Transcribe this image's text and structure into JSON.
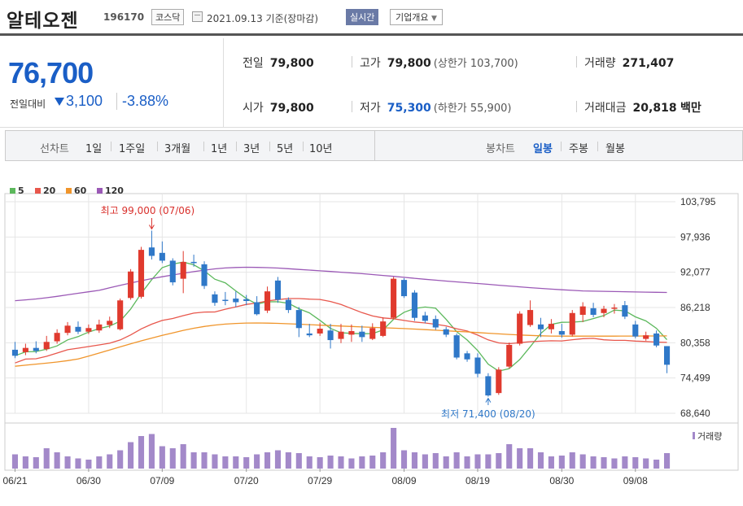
{
  "header": {
    "name": "알테오젠",
    "code": "196170",
    "market": "코스닥",
    "date": "2021.09.13",
    "date_suffix": "기준(장마감)",
    "realtime": "실시간",
    "company_info": "기업개요"
  },
  "price": {
    "current": "76,700",
    "change_label": "전일대비",
    "change": "3,100",
    "change_pct": "-3.88%",
    "prev_label": "전일",
    "prev": "79,800",
    "open_label": "시가",
    "open": "79,800",
    "high_label": "고가",
    "high": "79,800",
    "upper_limit": "(상한가 103,700)",
    "low_label": "저가",
    "low": "75,300",
    "lower_limit": "(하한가 55,900)",
    "volume_label": "거래량",
    "volume": "271,407",
    "amount_label": "거래대금",
    "amount": "20,818",
    "amount_unit": "백만"
  },
  "tabs": {
    "line_chart": "선차트",
    "periods": [
      "1일",
      "1주일",
      "3개월",
      "1년",
      "3년",
      "5년",
      "10년"
    ],
    "candle_chart": "봉차트",
    "candle_periods": [
      "일봉",
      "주봉",
      "월봉"
    ],
    "selected_candle": "일봉"
  },
  "colors": {
    "up": "#e03a2e",
    "down": "#2f78c8",
    "ma5": "#5cb85c",
    "ma20": "#e8574c",
    "ma60": "#f0952b",
    "ma120": "#9b59b6",
    "volume": "#a389c9"
  },
  "chart_data": {
    "type": "candlestick",
    "y_ticks": [
      "103,795",
      "97,936",
      "92,077",
      "86,218",
      "80,358",
      "74,499",
      "68,640"
    ],
    "ylim": [
      68640,
      103795
    ],
    "x_ticks": [
      "06/21",
      "06/30",
      "07/09",
      "07/20",
      "07/29",
      "08/09",
      "08/19",
      "08/30",
      "09/08"
    ],
    "legend": [
      "5",
      "20",
      "60",
      "120"
    ],
    "annotations": {
      "high": "최고 99,000 (07/06)",
      "low": "최저 71,400 (08/20)"
    },
    "volume_label": "거래량",
    "candles": [
      {
        "o": 79200,
        "c": 78200,
        "h": 80500,
        "l": 77800,
        "v": 0.35
      },
      {
        "o": 78800,
        "c": 79500,
        "h": 80200,
        "l": 78300,
        "v": 0.3
      },
      {
        "o": 79500,
        "c": 79000,
        "h": 80600,
        "l": 78600,
        "v": 0.28
      },
      {
        "o": 79300,
        "c": 80500,
        "h": 81500,
        "l": 79000,
        "v": 0.5
      },
      {
        "o": 80600,
        "c": 82000,
        "h": 82600,
        "l": 80200,
        "v": 0.4
      },
      {
        "o": 82000,
        "c": 83200,
        "h": 83800,
        "l": 81600,
        "v": 0.3
      },
      {
        "o": 83000,
        "c": 82200,
        "h": 83900,
        "l": 81800,
        "v": 0.25
      },
      {
        "o": 82200,
        "c": 82800,
        "h": 83400,
        "l": 81800,
        "v": 0.22
      },
      {
        "o": 82400,
        "c": 83400,
        "h": 84200,
        "l": 82000,
        "v": 0.3
      },
      {
        "o": 83300,
        "c": 84000,
        "h": 84700,
        "l": 82800,
        "v": 0.35
      },
      {
        "o": 82600,
        "c": 87400,
        "h": 87700,
        "l": 82400,
        "v": 0.45
      },
      {
        "o": 87800,
        "c": 92200,
        "h": 92600,
        "l": 87500,
        "v": 0.65
      },
      {
        "o": 88000,
        "c": 95800,
        "h": 96300,
        "l": 87700,
        "v": 0.8
      },
      {
        "o": 96200,
        "c": 94800,
        "h": 99000,
        "l": 94200,
        "v": 0.85
      },
      {
        "o": 95300,
        "c": 94000,
        "h": 97200,
        "l": 93600,
        "v": 0.55
      },
      {
        "o": 94000,
        "c": 90400,
        "h": 94400,
        "l": 89900,
        "v": 0.5
      },
      {
        "o": 91000,
        "c": 93800,
        "h": 95600,
        "l": 88600,
        "v": 0.6
      },
      {
        "o": 93800,
        "c": 93600,
        "h": 95000,
        "l": 93000,
        "v": 0.4
      },
      {
        "o": 93400,
        "c": 89800,
        "h": 93900,
        "l": 89300,
        "v": 0.4
      },
      {
        "o": 88400,
        "c": 87000,
        "h": 88900,
        "l": 86500,
        "v": 0.35
      },
      {
        "o": 87500,
        "c": 87400,
        "h": 88800,
        "l": 86600,
        "v": 0.3
      },
      {
        "o": 87700,
        "c": 87100,
        "h": 88900,
        "l": 86300,
        "v": 0.3
      },
      {
        "o": 87600,
        "c": 87300,
        "h": 88300,
        "l": 86600,
        "v": 0.28
      },
      {
        "o": 87100,
        "c": 85100,
        "h": 88100,
        "l": 84900,
        "v": 0.35
      },
      {
        "o": 85700,
        "c": 88900,
        "h": 89700,
        "l": 85300,
        "v": 0.4
      },
      {
        "o": 90700,
        "c": 87500,
        "h": 91300,
        "l": 87000,
        "v": 0.45
      },
      {
        "o": 87500,
        "c": 85800,
        "h": 87900,
        "l": 85300,
        "v": 0.4
      },
      {
        "o": 85800,
        "c": 82800,
        "h": 86300,
        "l": 81300,
        "v": 0.38
      },
      {
        "o": 81900,
        "c": 81600,
        "h": 83500,
        "l": 81300,
        "v": 0.3
      },
      {
        "o": 81900,
        "c": 82700,
        "h": 83700,
        "l": 81500,
        "v": 0.28
      },
      {
        "o": 82400,
        "c": 80800,
        "h": 83500,
        "l": 79400,
        "v": 0.32
      },
      {
        "o": 81000,
        "c": 82200,
        "h": 83500,
        "l": 80300,
        "v": 0.3
      },
      {
        "o": 81700,
        "c": 82300,
        "h": 83400,
        "l": 80500,
        "v": 0.25
      },
      {
        "o": 82200,
        "c": 81300,
        "h": 83200,
        "l": 80500,
        "v": 0.3
      },
      {
        "o": 81000,
        "c": 82800,
        "h": 83600,
        "l": 80800,
        "v": 0.32
      },
      {
        "o": 81500,
        "c": 83900,
        "h": 84600,
        "l": 81300,
        "v": 0.4
      },
      {
        "o": 84500,
        "c": 91000,
        "h": 91300,
        "l": 84300,
        "v": 1.0
      },
      {
        "o": 90800,
        "c": 88100,
        "h": 91100,
        "l": 87800,
        "v": 0.45
      },
      {
        "o": 88700,
        "c": 84500,
        "h": 89100,
        "l": 84000,
        "v": 0.4
      },
      {
        "o": 84900,
        "c": 84000,
        "h": 85500,
        "l": 83600,
        "v": 0.35
      },
      {
        "o": 84300,
        "c": 82900,
        "h": 84900,
        "l": 82500,
        "v": 0.38
      },
      {
        "o": 82600,
        "c": 81700,
        "h": 83000,
        "l": 81300,
        "v": 0.3
      },
      {
        "o": 81600,
        "c": 77900,
        "h": 81900,
        "l": 77600,
        "v": 0.4
      },
      {
        "o": 78600,
        "c": 77600,
        "h": 79000,
        "l": 77200,
        "v": 0.3
      },
      {
        "o": 77900,
        "c": 75200,
        "h": 78600,
        "l": 74600,
        "v": 0.35
      },
      {
        "o": 74800,
        "c": 71600,
        "h": 75300,
        "l": 71400,
        "v": 0.35
      },
      {
        "o": 72000,
        "c": 75900,
        "h": 76300,
        "l": 71700,
        "v": 0.38
      },
      {
        "o": 76400,
        "c": 80000,
        "h": 80400,
        "l": 76100,
        "v": 0.6
      },
      {
        "o": 80200,
        "c": 85200,
        "h": 85600,
        "l": 79900,
        "v": 0.5
      },
      {
        "o": 83300,
        "c": 85800,
        "h": 87400,
        "l": 83000,
        "v": 0.5
      },
      {
        "o": 83400,
        "c": 82600,
        "h": 84500,
        "l": 81300,
        "v": 0.4
      },
      {
        "o": 82600,
        "c": 83500,
        "h": 84300,
        "l": 81900,
        "v": 0.3
      },
      {
        "o": 82300,
        "c": 81700,
        "h": 83500,
        "l": 81200,
        "v": 0.32
      },
      {
        "o": 81700,
        "c": 85300,
        "h": 85800,
        "l": 81400,
        "v": 0.4
      },
      {
        "o": 85000,
        "c": 86400,
        "h": 87100,
        "l": 83800,
        "v": 0.35
      },
      {
        "o": 86100,
        "c": 85000,
        "h": 87000,
        "l": 84600,
        "v": 0.3
      },
      {
        "o": 85300,
        "c": 86000,
        "h": 86500,
        "l": 84600,
        "v": 0.28
      },
      {
        "o": 86000,
        "c": 86200,
        "h": 86800,
        "l": 85200,
        "v": 0.25
      },
      {
        "o": 86600,
        "c": 84700,
        "h": 87300,
        "l": 84300,
        "v": 0.3
      },
      {
        "o": 83400,
        "c": 81400,
        "h": 84000,
        "l": 81100,
        "v": 0.28
      },
      {
        "o": 81000,
        "c": 81600,
        "h": 82200,
        "l": 80700,
        "v": 0.25
      },
      {
        "o": 81900,
        "c": 79900,
        "h": 82400,
        "l": 79600,
        "v": 0.22
      },
      {
        "o": 79800,
        "c": 76700,
        "h": 79800,
        "l": 75300,
        "v": 0.38
      }
    ]
  }
}
